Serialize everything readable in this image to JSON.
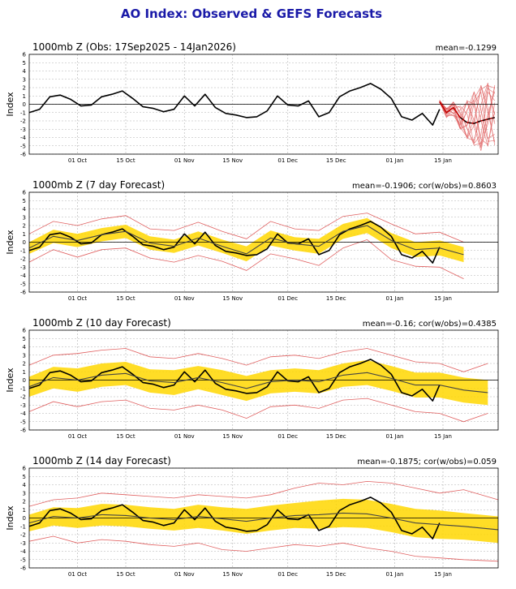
{
  "figure": {
    "title": "AO Index: Observed & GEFS Forecasts",
    "title_color": "#1a1aa8"
  },
  "colors": {
    "observed": "#000000",
    "members": "#e06060",
    "spread": "#ffd700",
    "ens_mean": "#444444",
    "grid": "#b0b0b0",
    "zero_line": "#000000"
  },
  "x_axis": {
    "start": "2025-09-17",
    "end": "2026-01-31",
    "tick_labels": [
      "01 Oct",
      "15 Oct",
      "01 Nov",
      "15 Nov",
      "01 Dec",
      "15 Dec",
      "01 Jan",
      "15 Jan"
    ],
    "tick_dates": [
      "2025-10-01",
      "2025-10-15",
      "2025-11-01",
      "2025-11-15",
      "2025-12-01",
      "2025-12-15",
      "2026-01-01",
      "2026-01-15"
    ]
  },
  "chart_data": [
    {
      "type": "line",
      "title": "1000mb Z (Obs: 17Sep2025 - 14Jan2026)",
      "stat": "mean=-0.1299",
      "ylabel": "Index",
      "ylim": [
        -6,
        6
      ],
      "yticks": [
        "-6",
        "-5",
        "-4",
        "-3",
        "-2",
        "-1",
        "0",
        "1",
        "2",
        "3",
        "4",
        "5",
        "6"
      ],
      "grid": true,
      "observed": {
        "x": [
          "2025-09-17",
          "2025-09-20",
          "2025-09-23",
          "2025-09-26",
          "2025-09-29",
          "2025-10-02",
          "2025-10-05",
          "2025-10-08",
          "2025-10-11",
          "2025-10-14",
          "2025-10-17",
          "2025-10-20",
          "2025-10-23",
          "2025-10-26",
          "2025-10-29",
          "2025-11-01",
          "2025-11-04",
          "2025-11-07",
          "2025-11-10",
          "2025-11-13",
          "2025-11-16",
          "2025-11-19",
          "2025-11-22",
          "2025-11-25",
          "2025-11-28",
          "2025-12-01",
          "2025-12-04",
          "2025-12-07",
          "2025-12-10",
          "2025-12-13",
          "2025-12-16",
          "2025-12-19",
          "2025-12-22",
          "2025-12-25",
          "2025-12-28",
          "2025-12-31",
          "2026-01-03",
          "2026-01-06",
          "2026-01-09",
          "2026-01-12",
          "2026-01-14"
        ],
        "y": [
          -1.0,
          -0.6,
          0.9,
          1.1,
          0.6,
          -0.2,
          -0.1,
          0.9,
          1.2,
          1.6,
          0.7,
          -0.3,
          -0.5,
          -0.9,
          -0.6,
          1.0,
          -0.2,
          1.2,
          -0.4,
          -1.1,
          -1.3,
          -1.6,
          -1.5,
          -0.8,
          1.0,
          -0.1,
          -0.2,
          0.4,
          -1.5,
          -1.0,
          0.9,
          1.6,
          2.0,
          2.5,
          1.8,
          0.7,
          -1.5,
          -1.9,
          -1.1,
          -2.5,
          -0.6
        ]
      },
      "forecast": {
        "x": [
          "2026-01-14",
          "2026-01-16",
          "2026-01-18",
          "2026-01-20",
          "2026-01-22",
          "2026-01-24",
          "2026-01-26",
          "2026-01-28",
          "2026-01-30"
        ],
        "ens_mean": [
          0.3,
          -1.0,
          -0.4,
          -1.6,
          -2.2,
          -2.3,
          -2.0,
          -1.8,
          -1.6
        ],
        "members_min": [
          0.2,
          -1.6,
          -1.4,
          -3.0,
          -4.2,
          -5.0,
          -5.6,
          -5.2,
          -5.0
        ],
        "members_max": [
          0.5,
          -0.5,
          0.3,
          -0.2,
          0.5,
          1.5,
          2.4,
          2.8,
          2.3
        ]
      }
    },
    {
      "type": "line",
      "title": "1000mb Z (7 day Forecast)",
      "stat": "mean=-0.1906; cor(w/obs)=0.8603",
      "ylabel": "Index",
      "ylim": [
        -6,
        6
      ],
      "yticks": [
        "-6",
        "-5",
        "-4",
        "-3",
        "-2",
        "-1",
        "0",
        "1",
        "2",
        "3",
        "4",
        "5",
        "6"
      ],
      "grid": true,
      "observed": {
        "x": [
          "2025-09-17",
          "2025-09-20",
          "2025-09-23",
          "2025-09-26",
          "2025-09-29",
          "2025-10-02",
          "2025-10-05",
          "2025-10-08",
          "2025-10-11",
          "2025-10-14",
          "2025-10-17",
          "2025-10-20",
          "2025-10-23",
          "2025-10-26",
          "2025-10-29",
          "2025-11-01",
          "2025-11-04",
          "2025-11-07",
          "2025-11-10",
          "2025-11-13",
          "2025-11-16",
          "2025-11-19",
          "2025-11-22",
          "2025-11-25",
          "2025-11-28",
          "2025-12-01",
          "2025-12-04",
          "2025-12-07",
          "2025-12-10",
          "2025-12-13",
          "2025-12-16",
          "2025-12-19",
          "2025-12-22",
          "2025-12-25",
          "2025-12-28",
          "2025-12-31",
          "2026-01-03",
          "2026-01-06",
          "2026-01-09",
          "2026-01-12",
          "2026-01-14"
        ],
        "y": [
          -1.0,
          -0.6,
          0.9,
          1.1,
          0.6,
          -0.2,
          -0.1,
          0.9,
          1.2,
          1.6,
          0.7,
          -0.3,
          -0.5,
          -0.9,
          -0.6,
          1.0,
          -0.2,
          1.2,
          -0.4,
          -1.1,
          -1.3,
          -1.6,
          -1.5,
          -0.8,
          1.0,
          -0.1,
          -0.2,
          0.4,
          -1.5,
          -1.0,
          0.9,
          1.6,
          2.0,
          2.5,
          1.8,
          0.7,
          -1.5,
          -1.9,
          -1.1,
          -2.5,
          -0.6
        ]
      },
      "forecast": {
        "x": [
          "2025-09-17",
          "2025-09-24",
          "2025-10-01",
          "2025-10-08",
          "2025-10-15",
          "2025-10-22",
          "2025-10-29",
          "2025-11-05",
          "2025-11-12",
          "2025-11-19",
          "2025-11-26",
          "2025-12-03",
          "2025-12-10",
          "2025-12-17",
          "2025-12-24",
          "2025-12-31",
          "2026-01-07",
          "2026-01-14",
          "2026-01-21"
        ],
        "ens_mean": [
          -0.7,
          0.7,
          0.2,
          0.9,
          1.3,
          -0.1,
          -0.5,
          0.5,
          -0.5,
          -1.4,
          0.5,
          -0.2,
          -0.5,
          1.3,
          2.0,
          0.2,
          -0.9,
          -0.7,
          -1.5
        ],
        "spread_low": [
          -1.4,
          -0.1,
          -0.6,
          0.1,
          0.5,
          -0.9,
          -1.3,
          -0.4,
          -1.3,
          -2.3,
          -0.4,
          -1.0,
          -1.4,
          0.4,
          1.1,
          -0.7,
          -1.8,
          -1.6,
          -2.4
        ],
        "spread_high": [
          0.0,
          1.5,
          1.0,
          1.7,
          2.1,
          0.7,
          0.3,
          1.3,
          0.3,
          -0.5,
          1.4,
          0.6,
          0.4,
          2.2,
          2.9,
          1.1,
          0.0,
          0.2,
          -0.6
        ],
        "members_min": [
          -2.4,
          -0.9,
          -1.8,
          -0.9,
          -0.7,
          -1.9,
          -2.4,
          -1.6,
          -2.3,
          -3.4,
          -1.4,
          -2.0,
          -2.8,
          -0.7,
          0.3,
          -2.1,
          -2.9,
          -3.0,
          -4.4
        ],
        "members_max": [
          1.0,
          2.5,
          2.0,
          2.8,
          3.2,
          1.6,
          1.4,
          2.4,
          1.3,
          0.4,
          2.5,
          1.6,
          1.4,
          3.1,
          3.5,
          2.2,
          1.0,
          1.2,
          0.0
        ]
      }
    },
    {
      "type": "line",
      "title": "1000mb Z (10 day Forecast)",
      "stat": "mean=-0.16; cor(w/obs)=0.4385",
      "ylabel": "Index",
      "ylim": [
        -6,
        6
      ],
      "yticks": [
        "-6",
        "-5",
        "-4",
        "-3",
        "-2",
        "-1",
        "0",
        "1",
        "2",
        "3",
        "4",
        "5",
        "6"
      ],
      "grid": true,
      "observed": {
        "x": [
          "2025-09-17",
          "2025-09-20",
          "2025-09-23",
          "2025-09-26",
          "2025-09-29",
          "2025-10-02",
          "2025-10-05",
          "2025-10-08",
          "2025-10-11",
          "2025-10-14",
          "2025-10-17",
          "2025-10-20",
          "2025-10-23",
          "2025-10-26",
          "2025-10-29",
          "2025-11-01",
          "2025-11-04",
          "2025-11-07",
          "2025-11-10",
          "2025-11-13",
          "2025-11-16",
          "2025-11-19",
          "2025-11-22",
          "2025-11-25",
          "2025-11-28",
          "2025-12-01",
          "2025-12-04",
          "2025-12-07",
          "2025-12-10",
          "2025-12-13",
          "2025-12-16",
          "2025-12-19",
          "2025-12-22",
          "2025-12-25",
          "2025-12-28",
          "2025-12-31",
          "2026-01-03",
          "2026-01-06",
          "2026-01-09",
          "2026-01-12",
          "2026-01-14"
        ],
        "y": [
          -1.0,
          -0.6,
          0.9,
          1.1,
          0.6,
          -0.2,
          -0.1,
          0.9,
          1.2,
          1.6,
          0.7,
          -0.3,
          -0.5,
          -0.9,
          -0.6,
          1.0,
          -0.2,
          1.2,
          -0.4,
          -1.1,
          -1.3,
          -1.6,
          -1.5,
          -0.8,
          1.0,
          -0.1,
          -0.2,
          0.4,
          -1.5,
          -1.0,
          0.9,
          1.6,
          2.0,
          2.5,
          1.8,
          0.7,
          -1.5,
          -1.9,
          -1.1,
          -2.5,
          -0.6
        ]
      },
      "forecast": {
        "x": [
          "2025-09-17",
          "2025-09-24",
          "2025-10-01",
          "2025-10-08",
          "2025-10-15",
          "2025-10-22",
          "2025-10-29",
          "2025-11-05",
          "2025-11-12",
          "2025-11-19",
          "2025-11-26",
          "2025-12-03",
          "2025-12-10",
          "2025-12-17",
          "2025-12-24",
          "2025-12-31",
          "2026-01-07",
          "2026-01-14",
          "2026-01-21",
          "2026-01-28"
        ],
        "ens_mean": [
          -0.8,
          0.3,
          0.0,
          0.6,
          0.8,
          -0.1,
          -0.3,
          0.3,
          -0.3,
          -1.0,
          -0.2,
          0.0,
          -0.2,
          0.6,
          0.9,
          0.2,
          -0.6,
          -0.6,
          -1.2,
          -1.5
        ],
        "spread_low": [
          -2.0,
          -1.0,
          -1.4,
          -0.8,
          -0.6,
          -1.5,
          -1.8,
          -1.1,
          -1.8,
          -2.5,
          -1.6,
          -1.4,
          -1.6,
          -0.8,
          -0.6,
          -1.3,
          -2.1,
          -2.1,
          -2.7,
          -3.0
        ],
        "spread_high": [
          0.4,
          1.6,
          1.4,
          2.0,
          2.2,
          1.3,
          1.2,
          1.7,
          1.2,
          0.5,
          1.2,
          1.4,
          1.2,
          2.0,
          2.4,
          1.7,
          0.9,
          0.9,
          0.3,
          0.0
        ],
        "members_min": [
          -3.8,
          -2.6,
          -3.2,
          -2.6,
          -2.4,
          -3.4,
          -3.6,
          -3.0,
          -3.6,
          -4.6,
          -3.2,
          -3.0,
          -3.4,
          -2.4,
          -2.2,
          -3.0,
          -3.8,
          -4.0,
          -5.0,
          -4.0
        ],
        "members_max": [
          1.8,
          3.0,
          3.2,
          3.6,
          3.8,
          2.8,
          2.6,
          3.2,
          2.6,
          1.8,
          2.8,
          3.0,
          2.6,
          3.4,
          3.8,
          3.0,
          2.2,
          2.0,
          1.0,
          2.0
        ]
      }
    },
    {
      "type": "line",
      "title": "1000mb Z (14 day Forecast)",
      "stat": "mean=-0.1875; cor(w/obs)=0.059",
      "ylabel": "Index",
      "ylim": [
        -6,
        6
      ],
      "yticks": [
        "-6",
        "-5",
        "-4",
        "-3",
        "-2",
        "-1",
        "0",
        "1",
        "2",
        "3",
        "4",
        "5",
        "6"
      ],
      "grid": true,
      "observed": {
        "x": [
          "2025-09-17",
          "2025-09-20",
          "2025-09-23",
          "2025-09-26",
          "2025-09-29",
          "2025-10-02",
          "2025-10-05",
          "2025-10-08",
          "2025-10-11",
          "2025-10-14",
          "2025-10-17",
          "2025-10-20",
          "2025-10-23",
          "2025-10-26",
          "2025-10-29",
          "2025-11-01",
          "2025-11-04",
          "2025-11-07",
          "2025-11-10",
          "2025-11-13",
          "2025-11-16",
          "2025-11-19",
          "2025-11-22",
          "2025-11-25",
          "2025-11-28",
          "2025-12-01",
          "2025-12-04",
          "2025-12-07",
          "2025-12-10",
          "2025-12-13",
          "2025-12-16",
          "2025-12-19",
          "2025-12-22",
          "2025-12-25",
          "2025-12-28",
          "2025-12-31",
          "2026-01-03",
          "2026-01-06",
          "2026-01-09",
          "2026-01-12",
          "2026-01-14"
        ],
        "y": [
          -1.0,
          -0.6,
          0.9,
          1.1,
          0.6,
          -0.2,
          -0.1,
          0.9,
          1.2,
          1.6,
          0.7,
          -0.3,
          -0.5,
          -0.9,
          -0.6,
          1.0,
          -0.2,
          1.2,
          -0.4,
          -1.1,
          -1.3,
          -1.6,
          -1.5,
          -0.8,
          1.0,
          -0.1,
          -0.2,
          0.4,
          -1.5,
          -1.0,
          0.9,
          1.6,
          2.0,
          2.5,
          1.8,
          0.7,
          -1.5,
          -1.9,
          -1.1,
          -2.5,
          -0.6
        ]
      },
      "forecast": {
        "x": [
          "2025-09-17",
          "2025-09-24",
          "2025-10-01",
          "2025-10-08",
          "2025-10-15",
          "2025-10-22",
          "2025-10-29",
          "2025-11-05",
          "2025-11-12",
          "2025-11-19",
          "2025-11-26",
          "2025-12-03",
          "2025-12-10",
          "2025-12-17",
          "2025-12-24",
          "2025-12-31",
          "2026-01-07",
          "2026-01-14",
          "2026-01-21",
          "2026-01-31"
        ],
        "ens_mean": [
          -0.6,
          0.2,
          0.0,
          0.4,
          0.3,
          0.0,
          -0.2,
          0.2,
          -0.1,
          -0.4,
          0.0,
          0.3,
          0.4,
          0.6,
          0.5,
          0.0,
          -0.6,
          -0.8,
          -1.0,
          -1.4
        ],
        "spread_low": [
          -1.6,
          -0.9,
          -1.2,
          -0.9,
          -1.0,
          -1.3,
          -1.5,
          -1.2,
          -1.5,
          -1.9,
          -1.5,
          -1.2,
          -1.3,
          -1.1,
          -1.2,
          -1.7,
          -2.3,
          -2.5,
          -2.6,
          -3.0
        ],
        "spread_high": [
          0.4,
          1.3,
          1.2,
          1.7,
          1.6,
          1.3,
          1.1,
          1.6,
          1.3,
          1.1,
          1.5,
          1.8,
          2.1,
          2.3,
          2.2,
          1.7,
          1.1,
          0.9,
          0.6,
          0.2
        ],
        "members_min": [
          -2.8,
          -2.2,
          -3.0,
          -2.6,
          -2.8,
          -3.2,
          -3.4,
          -3.0,
          -3.8,
          -4.0,
          -3.6,
          -3.2,
          -3.4,
          -3.0,
          -3.6,
          -4.0,
          -4.6,
          -4.8,
          -5.0,
          -5.2
        ],
        "members_max": [
          1.4,
          2.2,
          2.4,
          3.0,
          2.8,
          2.6,
          2.4,
          2.8,
          2.6,
          2.4,
          2.8,
          3.6,
          4.2,
          4.0,
          4.4,
          4.2,
          3.6,
          3.0,
          3.4,
          2.2
        ]
      }
    }
  ]
}
